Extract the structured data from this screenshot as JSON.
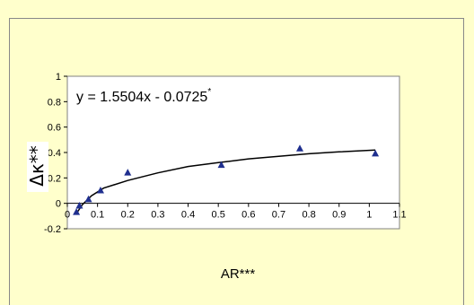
{
  "chart_data": {
    "type": "scatter",
    "x_ticks": [
      "0",
      "0.1",
      "0.2",
      "0.3",
      "0.4",
      "0.5",
      "0.6",
      "0.7",
      "0.8",
      "0.9",
      "1",
      "1.1"
    ],
    "y_ticks": [
      "-0.2",
      "0",
      "0.2",
      "0.4",
      "0.6",
      "0.8",
      "1"
    ],
    "xlim": [
      0,
      1.1
    ],
    "ylim": [
      -0.2,
      1.0
    ],
    "xlabel": "AR***",
    "ylabel": "Δκ**",
    "annotation": "y = 1.5504x - 0.0725",
    "annotation_mark": "*",
    "marker": "triangle",
    "marker_color": "#1f2f8f",
    "series": [
      {
        "points": [
          {
            "x": 0.03,
            "y": -0.07
          },
          {
            "x": 0.04,
            "y": -0.02
          },
          {
            "x": 0.07,
            "y": 0.03
          },
          {
            "x": 0.11,
            "y": 0.1
          },
          {
            "x": 0.2,
            "y": 0.24
          },
          {
            "x": 0.51,
            "y": 0.3
          },
          {
            "x": 0.77,
            "y": 0.43
          },
          {
            "x": 1.02,
            "y": 0.39
          }
        ]
      }
    ],
    "trendline": {
      "type": "log",
      "points": [
        {
          "x": 0.03,
          "y": -0.08
        },
        {
          "x": 0.05,
          "y": -0.01
        },
        {
          "x": 0.08,
          "y": 0.06
        },
        {
          "x": 0.12,
          "y": 0.12
        },
        {
          "x": 0.2,
          "y": 0.18
        },
        {
          "x": 0.3,
          "y": 0.24
        },
        {
          "x": 0.4,
          "y": 0.29
        },
        {
          "x": 0.5,
          "y": 0.32
        },
        {
          "x": 0.6,
          "y": 0.35
        },
        {
          "x": 0.7,
          "y": 0.37
        },
        {
          "x": 0.8,
          "y": 0.39
        },
        {
          "x": 0.9,
          "y": 0.405
        },
        {
          "x": 1.02,
          "y": 0.42
        }
      ]
    },
    "grid": false,
    "legend": "none"
  }
}
